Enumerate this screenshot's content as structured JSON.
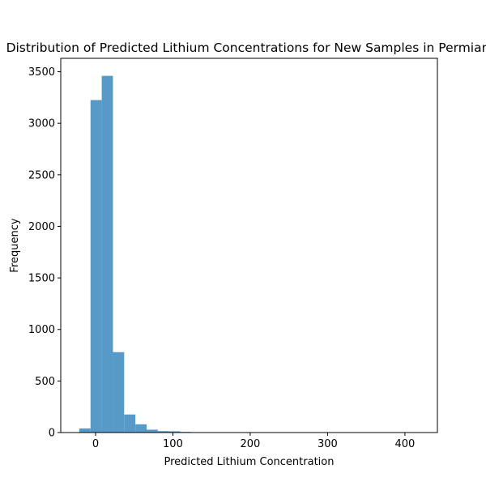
{
  "chart_data": {
    "type": "bar",
    "title": "Distribution of Predicted Lithium Concentrations for New Samples in Permian",
    "xlabel": "Predicted Lithium Concentration",
    "ylabel": "Frequency",
    "xlim": [
      -45,
      442
    ],
    "ylim": [
      0,
      3630
    ],
    "x_ticks": [
      0,
      100,
      200,
      300,
      400
    ],
    "y_ticks": [
      0,
      500,
      1000,
      1500,
      2000,
      2500,
      3000,
      3500
    ],
    "bin_width": 14.5,
    "bins": [
      {
        "start": -21.0,
        "count": 40
      },
      {
        "start": -6.5,
        "count": 3225
      },
      {
        "start": 8.0,
        "count": 3460
      },
      {
        "start": 22.5,
        "count": 780
      },
      {
        "start": 37.0,
        "count": 175
      },
      {
        "start": 51.5,
        "count": 80
      },
      {
        "start": 66.0,
        "count": 28
      },
      {
        "start": 80.5,
        "count": 14
      },
      {
        "start": 95.0,
        "count": 12
      },
      {
        "start": 109.5,
        "count": 6
      },
      {
        "start": 124.0,
        "count": 3
      },
      {
        "start": 138.5,
        "count": 2
      },
      {
        "start": 153.0,
        "count": 2
      },
      {
        "start": 167.5,
        "count": 1
      },
      {
        "start": 182.0,
        "count": 1
      },
      {
        "start": 196.5,
        "count": 1
      },
      {
        "start": 211.0,
        "count": 1
      },
      {
        "start": 225.5,
        "count": 1
      },
      {
        "start": 240.0,
        "count": 1
      },
      {
        "start": 254.5,
        "count": 1
      },
      {
        "start": 269.0,
        "count": 1
      },
      {
        "start": 283.5,
        "count": 1
      },
      {
        "start": 298.0,
        "count": 1
      },
      {
        "start": 312.5,
        "count": 1
      },
      {
        "start": 327.0,
        "count": 1
      },
      {
        "start": 341.5,
        "count": 1
      },
      {
        "start": 356.0,
        "count": 1
      },
      {
        "start": 370.5,
        "count": 1
      },
      {
        "start": 385.0,
        "count": 1
      },
      {
        "start": 399.5,
        "count": 1
      }
    ],
    "bar_color": "#5799c7",
    "grid": false,
    "legend": "none"
  }
}
